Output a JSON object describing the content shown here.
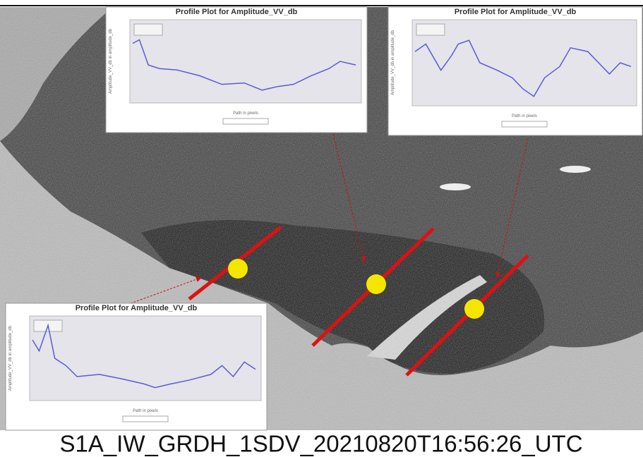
{
  "panels": [
    {
      "title": "Profile Plot for Amplitude_VV_db",
      "y_label": "Amplitude_VV_db in amplitude_db",
      "x_label": "Path in pixels"
    },
    {
      "title": "Profile Plot for Amplitude_VV_db",
      "y_label": "Amplitude_VV_db in amplitude_db",
      "x_label": "Path in pixels"
    },
    {
      "title": "Profile Plot for Amplitude_VV_db",
      "y_label": "Amplitude_VV_db in amplitude_db",
      "x_label": "Path in pixels"
    }
  ],
  "caption": "S1A_IW_GRDH_1SDV_20210820T16:56:26_UTC"
}
